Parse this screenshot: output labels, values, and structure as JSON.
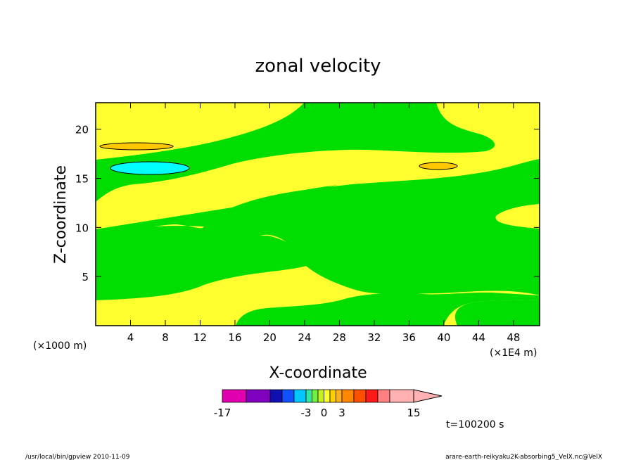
{
  "chart_data": {
    "type": "contour",
    "title": "zonal velocity",
    "xlabel": "X-coordinate",
    "ylabel": "Z-coordinate",
    "x_unit_left": "(×1000 m)",
    "x_unit_right": "(×1E4 m)",
    "xlim": [
      0,
      51
    ],
    "ylim": [
      0,
      22.7
    ],
    "x_ticks": [
      "4",
      "8",
      "12",
      "16",
      "20",
      "24",
      "28",
      "32",
      "36",
      "40",
      "44",
      "48"
    ],
    "y_ticks": [
      "5",
      "10",
      "15",
      "20"
    ],
    "levels": [
      -17,
      -13,
      -9,
      -7,
      -5,
      -3,
      -2,
      -1,
      0,
      1,
      2,
      3,
      5,
      7,
      9,
      11,
      15
    ],
    "level_colors": [
      "#e000b0",
      "#8000c0",
      "#1010b0",
      "#1050ff",
      "#00c8ff",
      "#30e8a0",
      "#70f040",
      "#c8f020",
      "#ffff30",
      "#ffd000",
      "#ffb020",
      "#ff8800",
      "#ff5000",
      "#ff1818",
      "#ff8080",
      "#ffb0b0"
    ],
    "colorbar_labels": [
      "-17",
      "-3",
      "0",
      "3",
      "15"
    ],
    "regions": [
      {
        "name": "background",
        "color": "#ffff30",
        "range": "0 to 1"
      },
      {
        "name": "negative band lower",
        "color": "#00dd00",
        "range": "-1 to 0"
      },
      {
        "name": "negative band upper",
        "color": "#00dd00",
        "range": "-1 to 0"
      },
      {
        "name": "negative top",
        "color": "#00dd00",
        "range": "-1 to 0"
      },
      {
        "name": "cyan minimum",
        "color": "#00ffff",
        "range": "-3 to -2",
        "center": [
          6.7,
          16.2
        ]
      },
      {
        "name": "orange max left",
        "color": "#ffc800",
        "range": "1 to 2",
        "center": [
          5,
          18.3
        ]
      },
      {
        "name": "orange max right",
        "color": "#ffc800",
        "range": "1 to 2",
        "center": [
          39.7,
          16.4
        ]
      }
    ]
  },
  "time_label": "t=100200 s",
  "footer_left": "/usr/local/bin/gpview  2010-11-09",
  "footer_right": "arare-earth-reikyaku2K-absorbing5_VelX.nc@VelX"
}
